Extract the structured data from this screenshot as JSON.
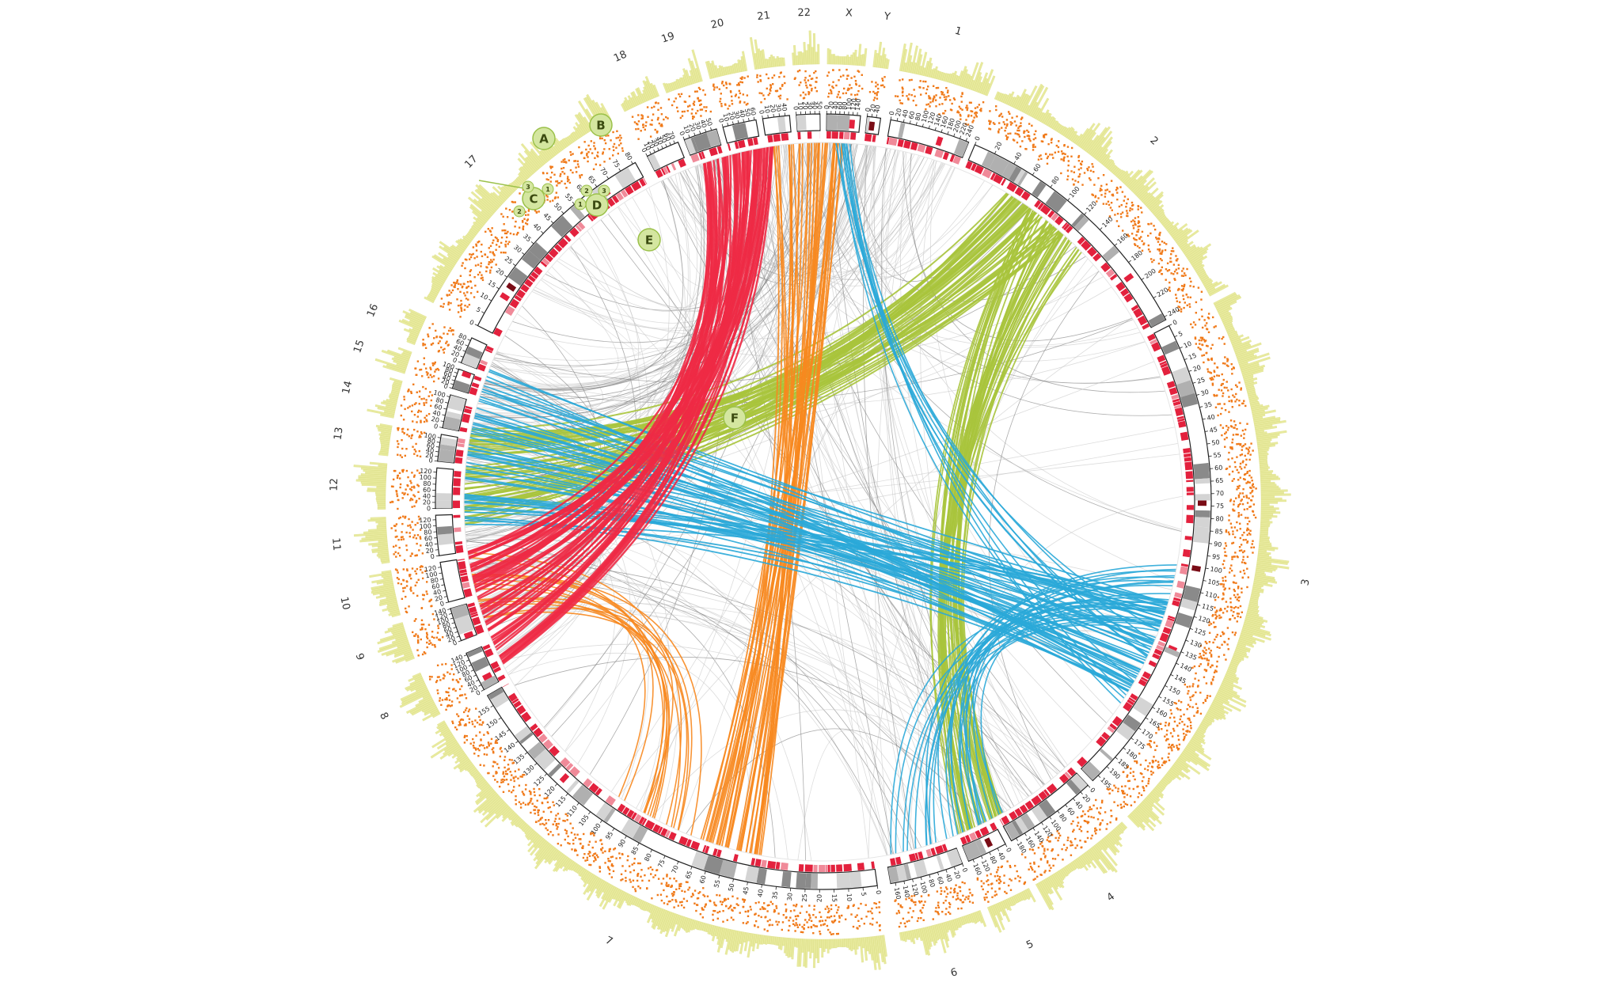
{
  "chromosomes": [
    {
      "label": "1",
      "ticks": [
        0,
        20,
        40,
        60,
        80,
        100,
        120,
        140,
        160,
        180,
        200,
        220,
        240
      ]
    },
    {
      "label": "2",
      "ticks": [
        0,
        20,
        40,
        60,
        80,
        100,
        120,
        140,
        160,
        180,
        200,
        220,
        240
      ]
    },
    {
      "label": "3",
      "ticks": [
        0,
        5,
        10,
        15,
        20,
        25,
        30,
        35,
        40,
        45,
        50,
        55,
        60,
        65,
        70,
        75,
        80,
        85,
        90,
        95,
        100,
        105,
        110,
        115,
        120,
        125,
        130,
        135,
        140,
        145,
        150,
        155,
        160,
        165,
        170,
        175,
        180,
        185,
        190,
        195
      ]
    },
    {
      "label": "4",
      "ticks": [
        0,
        20,
        40,
        60,
        80,
        100,
        120,
        140,
        160,
        180
      ]
    },
    {
      "label": "5",
      "ticks": [
        0,
        40,
        80,
        120,
        160
      ]
    },
    {
      "label": "6",
      "ticks": [
        0,
        20,
        40,
        60,
        80,
        100,
        120,
        140,
        160
      ]
    },
    {
      "label": "7",
      "ticks": [
        0,
        5,
        10,
        15,
        20,
        25,
        30,
        35,
        40,
        45,
        50,
        55,
        60,
        65,
        70,
        75,
        80,
        85,
        90,
        95,
        100,
        105,
        110,
        115,
        120,
        125,
        130,
        135,
        140,
        145,
        150,
        155
      ]
    },
    {
      "label": "8",
      "ticks": [
        0,
        20,
        40,
        60,
        80,
        100,
        120,
        140
      ]
    },
    {
      "label": "9",
      "ticks": [
        0,
        20,
        40,
        60,
        80,
        100,
        120,
        140
      ]
    },
    {
      "label": "10",
      "ticks": [
        0,
        20,
        40,
        60,
        80,
        100,
        120
      ]
    },
    {
      "label": "11",
      "ticks": [
        0,
        20,
        40,
        60,
        80,
        100,
        120
      ]
    },
    {
      "label": "12",
      "ticks": [
        0,
        20,
        40,
        60,
        80,
        100,
        120
      ]
    },
    {
      "label": "13",
      "ticks": [
        0,
        20,
        40,
        60,
        80,
        100
      ]
    },
    {
      "label": "14",
      "ticks": [
        0,
        20,
        40,
        60,
        80,
        100
      ]
    },
    {
      "label": "15",
      "ticks": [
        0,
        20,
        40,
        60,
        80,
        100
      ]
    },
    {
      "label": "16",
      "ticks": [
        0,
        20,
        40,
        60,
        80
      ]
    },
    {
      "label": "17",
      "ticks": [
        0,
        5,
        10,
        15,
        20,
        25,
        30,
        35,
        40,
        45,
        50,
        55,
        60,
        65,
        70,
        75,
        80
      ]
    },
    {
      "label": "18",
      "ticks": [
        0,
        10,
        20,
        30,
        40,
        50,
        60,
        70
      ]
    },
    {
      "label": "19",
      "ticks": [
        0,
        10,
        20,
        30,
        40,
        50
      ]
    },
    {
      "label": "20",
      "ticks": [
        0,
        10,
        20,
        30,
        40,
        50,
        60
      ]
    },
    {
      "label": "21",
      "ticks": [
        0,
        10,
        20,
        30,
        40
      ]
    },
    {
      "label": "22",
      "ticks": [
        0,
        10,
        20,
        30,
        40,
        50
      ]
    },
    {
      "label": "X",
      "ticks": [
        0,
        20,
        40,
        60,
        80,
        100,
        120,
        140
      ]
    },
    {
      "label": "Y",
      "ticks": [
        0,
        20,
        40
      ]
    }
  ],
  "annotations": [
    {
      "label": "A"
    },
    {
      "label": "B"
    },
    {
      "label": "C"
    },
    {
      "label": "D"
    },
    {
      "label": "E"
    },
    {
      "label": "F"
    }
  ],
  "sub_annotations": [
    {
      "label": "3"
    },
    {
      "label": "2"
    },
    {
      "label": "1"
    },
    {
      "label": "1"
    },
    {
      "label": "2"
    },
    {
      "label": "3"
    }
  ]
}
